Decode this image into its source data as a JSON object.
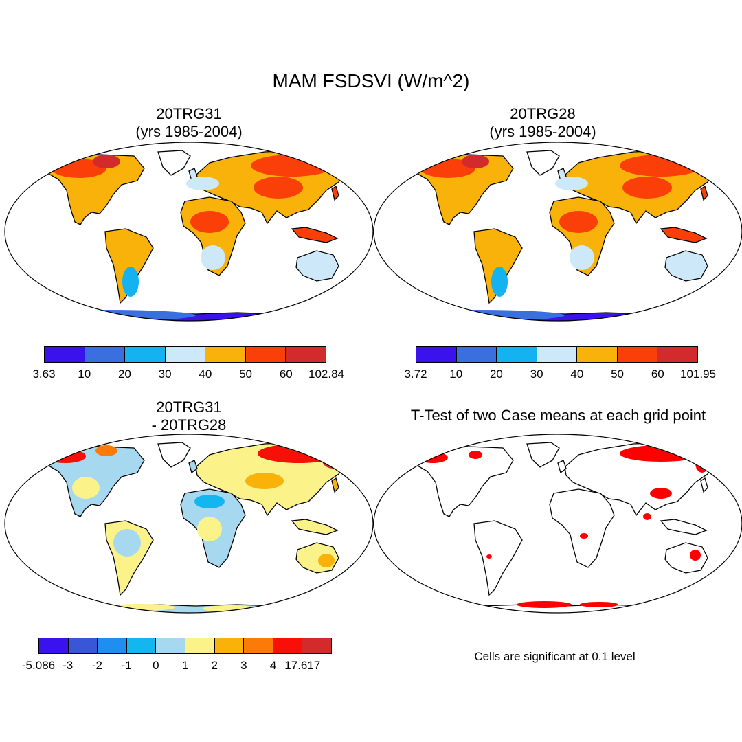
{
  "figure": {
    "title": "MAM FSDSVI (W/m^2)"
  },
  "panels": [
    {
      "id": "p1",
      "title_line1": "20TRG31",
      "title_line2": "(yrs 1985-2004)",
      "colorbar": {
        "labels": [
          "3.63",
          "10",
          "20",
          "30",
          "40",
          "50",
          "60",
          "102.84"
        ],
        "colors": [
          "#3a12ee",
          "#3a6fe0",
          "#14b2f0",
          "#cde8f8",
          "#f9b20a",
          "#fb3f08",
          "#d32b2b"
        ]
      }
    },
    {
      "id": "p2",
      "title_line1": "20TRG28",
      "title_line2": "(yrs 1985-2004)",
      "colorbar": {
        "labels": [
          "3.72",
          "10",
          "20",
          "30",
          "40",
          "50",
          "60",
          "101.95"
        ],
        "colors": [
          "#3a12ee",
          "#3a6fe0",
          "#14b2f0",
          "#cde8f8",
          "#f9b20a",
          "#fb3f08",
          "#d32b2b"
        ]
      }
    },
    {
      "id": "p3",
      "title_line1": "20TRG31",
      "title_line2": "- 20TRG28",
      "colorbar": {
        "labels": [
          "-5.086",
          "-3",
          "-2",
          "-1",
          "0",
          "1",
          "2",
          "3",
          "4",
          "17.617"
        ],
        "colors": [
          "#3a12ee",
          "#3a56d8",
          "#1f8ef0",
          "#14b6f0",
          "#a6d8f0",
          "#fcf28a",
          "#f9b20a",
          "#fb7a08",
          "#f80f08",
          "#d32b2b"
        ]
      }
    },
    {
      "id": "p4",
      "title": "T-Test of two Case means at each grid point",
      "note": "Cells are significant at 0.1 level",
      "significant_color": "#ff0000"
    }
  ]
}
